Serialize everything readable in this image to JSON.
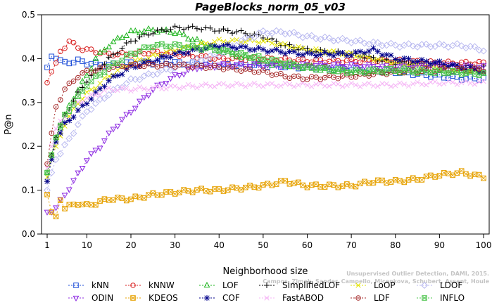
{
  "chart_data": {
    "type": "line",
    "title": "PageBlocks_norm_05_v03",
    "xlabel": "Neighborhood size",
    "ylabel": "P@n",
    "xlim": [
      1,
      100
    ],
    "ylim": [
      0,
      0.5
    ],
    "xticks": [
      1,
      10,
      20,
      30,
      40,
      50,
      60,
      70,
      80,
      90,
      100
    ],
    "yticks": [
      0.0,
      0.1,
      0.2,
      0.3,
      0.4,
      0.5
    ],
    "grid": false,
    "legend_position": "bottom",
    "credit_lines": [
      "Unsupervised Outlier Detection, DAMI, 2015.",
      "Campos, Zimek, Sander, Campello, Micenkova, Schubert, Assent, Houle"
    ],
    "series": [
      {
        "name": "kNN",
        "color": "#1f4fd8",
        "marker": "square",
        "dash": "2,3",
        "points": [
          [
            1,
            0.38
          ],
          [
            2,
            0.405
          ],
          [
            3,
            0.4
          ],
          [
            5,
            0.39
          ],
          [
            8,
            0.395
          ],
          [
            10,
            0.39
          ],
          [
            15,
            0.385
          ],
          [
            20,
            0.39
          ],
          [
            30,
            0.39
          ],
          [
            40,
            0.385
          ],
          [
            50,
            0.385
          ],
          [
            60,
            0.38
          ],
          [
            70,
            0.375
          ],
          [
            80,
            0.37
          ],
          [
            90,
            0.36
          ],
          [
            95,
            0.355
          ],
          [
            100,
            0.355
          ]
        ]
      },
      {
        "name": "kNNW",
        "color": "#d81f1f",
        "marker": "circle",
        "dash": "2,3",
        "points": [
          [
            1,
            0.345
          ],
          [
            2,
            0.37
          ],
          [
            3,
            0.39
          ],
          [
            4,
            0.415
          ],
          [
            6,
            0.44
          ],
          [
            8,
            0.425
          ],
          [
            10,
            0.42
          ],
          [
            15,
            0.41
          ],
          [
            20,
            0.41
          ],
          [
            25,
            0.415
          ],
          [
            30,
            0.41
          ],
          [
            40,
            0.4
          ],
          [
            50,
            0.4
          ],
          [
            60,
            0.395
          ],
          [
            70,
            0.395
          ],
          [
            80,
            0.395
          ],
          [
            90,
            0.39
          ],
          [
            100,
            0.39
          ]
        ]
      },
      {
        "name": "LOF",
        "color": "#1fb51f",
        "marker": "triangle-up",
        "dash": "2,3",
        "points": [
          [
            1,
            0.14
          ],
          [
            2,
            0.18
          ],
          [
            3,
            0.22
          ],
          [
            5,
            0.27
          ],
          [
            8,
            0.33
          ],
          [
            10,
            0.36
          ],
          [
            12,
            0.4
          ],
          [
            15,
            0.43
          ],
          [
            18,
            0.45
          ],
          [
            20,
            0.46
          ],
          [
            25,
            0.465
          ],
          [
            30,
            0.46
          ],
          [
            35,
            0.44
          ],
          [
            40,
            0.42
          ],
          [
            50,
            0.39
          ],
          [
            60,
            0.38
          ],
          [
            70,
            0.37
          ],
          [
            80,
            0.37
          ],
          [
            90,
            0.37
          ],
          [
            100,
            0.37
          ]
        ]
      },
      {
        "name": "SimplifiedLOF",
        "color": "#000000",
        "marker": "plus",
        "dash": "2,3",
        "points": [
          [
            1,
            0.12
          ],
          [
            2,
            0.18
          ],
          [
            3,
            0.22
          ],
          [
            5,
            0.27
          ],
          [
            8,
            0.32
          ],
          [
            10,
            0.35
          ],
          [
            12,
            0.37
          ],
          [
            15,
            0.4
          ],
          [
            20,
            0.44
          ],
          [
            25,
            0.46
          ],
          [
            30,
            0.47
          ],
          [
            35,
            0.47
          ],
          [
            40,
            0.465
          ],
          [
            45,
            0.46
          ],
          [
            50,
            0.45
          ],
          [
            55,
            0.43
          ],
          [
            60,
            0.42
          ],
          [
            70,
            0.41
          ],
          [
            80,
            0.39
          ],
          [
            90,
            0.385
          ],
          [
            100,
            0.38
          ]
        ]
      },
      {
        "name": "LoOP",
        "color": "#e3e300",
        "marker": "x",
        "dash": "2,3",
        "points": [
          [
            1,
            0.13
          ],
          [
            2,
            0.17
          ],
          [
            3,
            0.2
          ],
          [
            5,
            0.25
          ],
          [
            8,
            0.3
          ],
          [
            10,
            0.32
          ],
          [
            15,
            0.36
          ],
          [
            20,
            0.39
          ],
          [
            30,
            0.42
          ],
          [
            40,
            0.44
          ],
          [
            50,
            0.44
          ],
          [
            60,
            0.42
          ],
          [
            70,
            0.41
          ],
          [
            80,
            0.39
          ],
          [
            90,
            0.38
          ],
          [
            100,
            0.37
          ]
        ]
      },
      {
        "name": "LDOF",
        "color": "#b9b9f0",
        "marker": "diamond",
        "dash": "2,3",
        "points": [
          [
            1,
            0.1
          ],
          [
            2,
            0.14
          ],
          [
            3,
            0.17
          ],
          [
            5,
            0.2
          ],
          [
            8,
            0.25
          ],
          [
            10,
            0.28
          ],
          [
            15,
            0.32
          ],
          [
            20,
            0.35
          ],
          [
            30,
            0.38
          ],
          [
            40,
            0.41
          ],
          [
            45,
            0.44
          ],
          [
            50,
            0.46
          ],
          [
            55,
            0.46
          ],
          [
            60,
            0.45
          ],
          [
            70,
            0.44
          ],
          [
            80,
            0.43
          ],
          [
            90,
            0.43
          ],
          [
            95,
            0.43
          ],
          [
            100,
            0.42
          ]
        ]
      },
      {
        "name": "ODIN",
        "color": "#8d2be2",
        "marker": "triangle-down",
        "dash": "2,3",
        "points": [
          [
            1,
            0.05
          ],
          [
            2,
            0.05
          ],
          [
            3,
            0.06
          ],
          [
            5,
            0.09
          ],
          [
            7,
            0.12
          ],
          [
            10,
            0.17
          ],
          [
            13,
            0.2
          ],
          [
            16,
            0.24
          ],
          [
            20,
            0.28
          ],
          [
            25,
            0.33
          ],
          [
            30,
            0.36
          ],
          [
            35,
            0.38
          ],
          [
            40,
            0.385
          ],
          [
            50,
            0.385
          ],
          [
            60,
            0.385
          ],
          [
            70,
            0.385
          ],
          [
            80,
            0.38
          ],
          [
            90,
            0.385
          ],
          [
            100,
            0.38
          ]
        ]
      },
      {
        "name": "KDEOS",
        "color": "#e6a100",
        "marker": "square-x",
        "dash": "2,3",
        "points": [
          [
            1,
            0.09
          ],
          [
            2,
            0.05
          ],
          [
            3,
            0.04
          ],
          [
            4,
            0.08
          ],
          [
            5,
            0.06
          ],
          [
            8,
            0.07
          ],
          [
            10,
            0.065
          ],
          [
            12,
            0.07
          ],
          [
            15,
            0.08
          ],
          [
            20,
            0.08
          ],
          [
            25,
            0.09
          ],
          [
            30,
            0.095
          ],
          [
            35,
            0.1
          ],
          [
            40,
            0.1
          ],
          [
            45,
            0.105
          ],
          [
            50,
            0.11
          ],
          [
            55,
            0.12
          ],
          [
            60,
            0.11
          ],
          [
            65,
            0.11
          ],
          [
            70,
            0.11
          ],
          [
            75,
            0.12
          ],
          [
            80,
            0.12
          ],
          [
            85,
            0.125
          ],
          [
            90,
            0.135
          ],
          [
            95,
            0.14
          ],
          [
            100,
            0.13
          ]
        ]
      },
      {
        "name": "COF",
        "color": "#00008b",
        "marker": "asterisk",
        "dash": "2,3",
        "points": [
          [
            1,
            0.12
          ],
          [
            2,
            0.17
          ],
          [
            3,
            0.21
          ],
          [
            5,
            0.25
          ],
          [
            8,
            0.28
          ],
          [
            10,
            0.3
          ],
          [
            15,
            0.35
          ],
          [
            20,
            0.38
          ],
          [
            30,
            0.41
          ],
          [
            40,
            0.43
          ],
          [
            50,
            0.42
          ],
          [
            60,
            0.41
          ],
          [
            65,
            0.41
          ],
          [
            70,
            0.41
          ],
          [
            75,
            0.42
          ],
          [
            80,
            0.4
          ],
          [
            90,
            0.39
          ],
          [
            100,
            0.37
          ]
        ]
      },
      {
        "name": "FastABOD",
        "color": "#f5b3f5",
        "marker": "cross-small",
        "dash": "2,3",
        "points": [
          [
            1,
            0.15
          ],
          [
            2,
            0.2
          ],
          [
            3,
            0.24
          ],
          [
            5,
            0.27
          ],
          [
            8,
            0.3
          ],
          [
            10,
            0.31
          ],
          [
            15,
            0.33
          ],
          [
            20,
            0.33
          ],
          [
            30,
            0.335
          ],
          [
            40,
            0.34
          ],
          [
            50,
            0.34
          ],
          [
            60,
            0.34
          ],
          [
            70,
            0.34
          ],
          [
            80,
            0.34
          ],
          [
            90,
            0.345
          ],
          [
            100,
            0.345
          ]
        ]
      },
      {
        "name": "LDF",
        "color": "#a52a2a",
        "marker": "circle-dot",
        "dash": "2,3",
        "points": [
          [
            1,
            0.16
          ],
          [
            2,
            0.23
          ],
          [
            3,
            0.29
          ],
          [
            5,
            0.33
          ],
          [
            8,
            0.36
          ],
          [
            10,
            0.37
          ],
          [
            15,
            0.38
          ],
          [
            20,
            0.385
          ],
          [
            30,
            0.385
          ],
          [
            40,
            0.38
          ],
          [
            50,
            0.37
          ],
          [
            55,
            0.36
          ],
          [
            60,
            0.355
          ],
          [
            70,
            0.36
          ],
          [
            80,
            0.37
          ],
          [
            90,
            0.375
          ],
          [
            100,
            0.375
          ]
        ]
      },
      {
        "name": "INFLO",
        "color": "#4dc44d",
        "marker": "square-x",
        "dash": "2,3",
        "points": [
          [
            1,
            0.14
          ],
          [
            2,
            0.18
          ],
          [
            3,
            0.22
          ],
          [
            5,
            0.27
          ],
          [
            8,
            0.31
          ],
          [
            10,
            0.34
          ],
          [
            15,
            0.38
          ],
          [
            20,
            0.41
          ],
          [
            25,
            0.43
          ],
          [
            30,
            0.43
          ],
          [
            40,
            0.42
          ],
          [
            50,
            0.4
          ],
          [
            60,
            0.38
          ],
          [
            70,
            0.37
          ],
          [
            80,
            0.375
          ],
          [
            90,
            0.37
          ],
          [
            100,
            0.365
          ]
        ]
      }
    ]
  }
}
